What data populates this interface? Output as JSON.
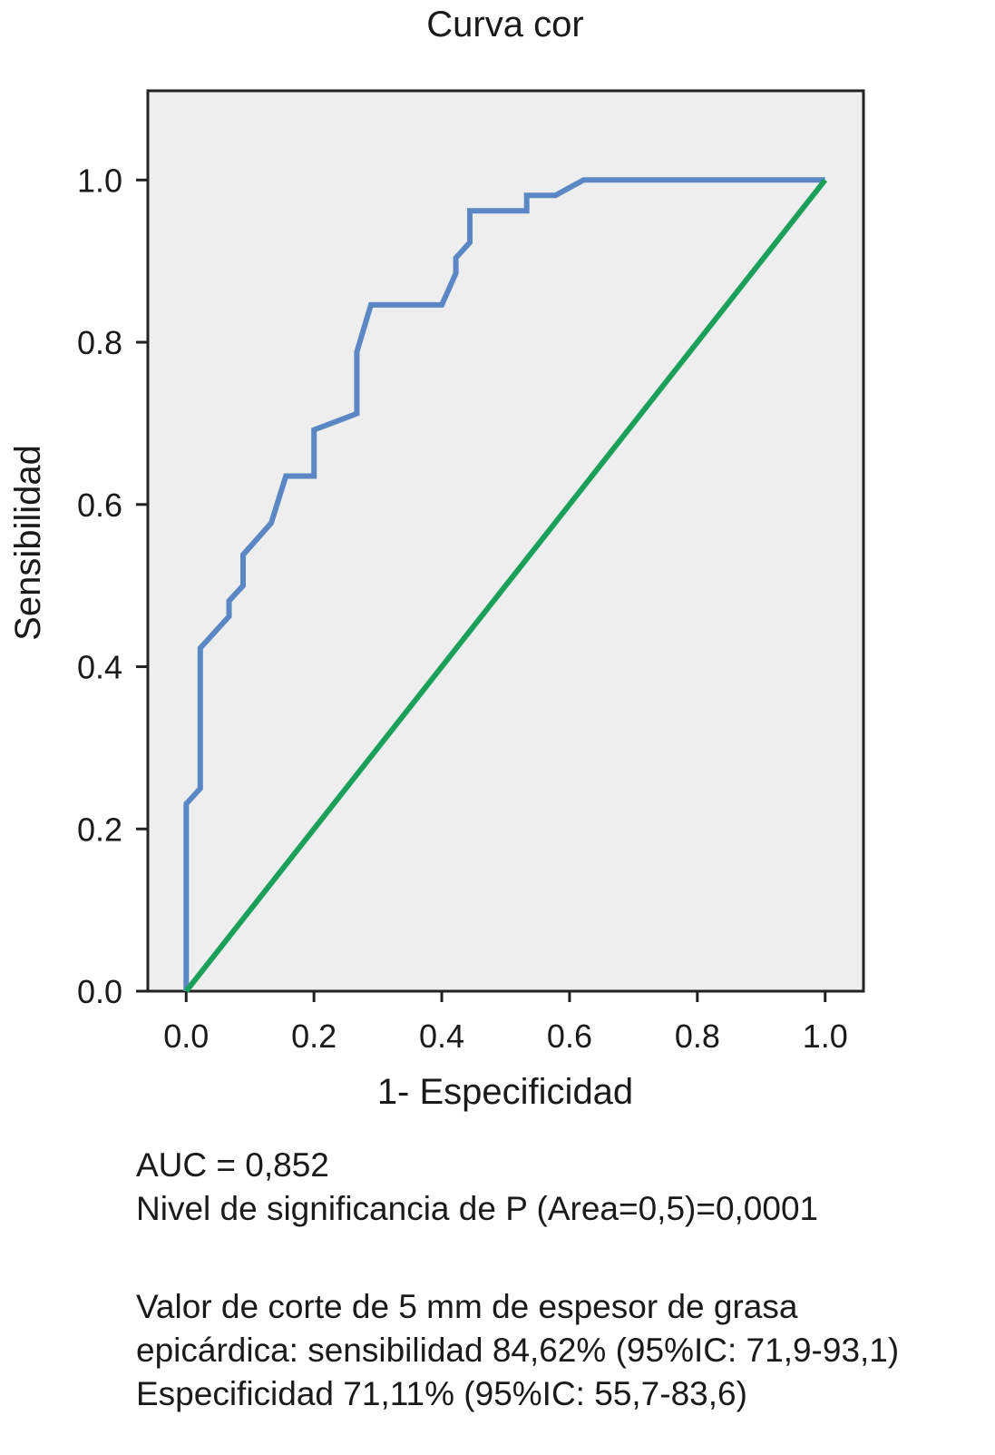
{
  "chart_data": {
    "type": "line",
    "title": "Curva cor",
    "xlabel": "1- Especificidad",
    "ylabel": "Sensibilidad",
    "xlim": [
      -0.06,
      1.06
    ],
    "ylim": [
      0.0,
      1.11
    ],
    "xticks": [
      0.0,
      0.2,
      0.4,
      0.6,
      0.8,
      1.0
    ],
    "yticks": [
      0.0,
      0.2,
      0.4,
      0.6,
      0.8,
      1.0
    ],
    "xtick_labels": [
      "0.0",
      "0.2",
      "0.4",
      "0.6",
      "0.8",
      "1.0"
    ],
    "ytick_labels": [
      "0.0",
      "0.2",
      "0.4",
      "0.6",
      "0.8",
      "1.0"
    ],
    "grid": false,
    "plot_background": "#eeeeee",
    "series": [
      {
        "color": "#5b87c4",
        "x": [
          0.0,
          0.0,
          0.022,
          0.022,
          0.067,
          0.067,
          0.089,
          0.089,
          0.133,
          0.156,
          0.2,
          0.2,
          0.267,
          0.267,
          0.289,
          0.4,
          0.422,
          0.422,
          0.444,
          0.444,
          0.533,
          0.533,
          0.578,
          0.622,
          1.0
        ],
        "y": [
          0.0,
          0.231,
          0.25,
          0.423,
          0.462,
          0.481,
          0.5,
          0.538,
          0.577,
          0.635,
          0.635,
          0.692,
          0.712,
          0.788,
          0.846,
          0.846,
          0.885,
          0.904,
          0.923,
          0.962,
          0.962,
          0.981,
          0.981,
          1.0,
          1.0
        ]
      },
      {
        "color": "#1aa05a",
        "x": [
          0.0,
          1.0
        ],
        "y": [
          0.0,
          1.0
        ]
      }
    ]
  },
  "notes": {
    "auc": "AUC = 0,852",
    "significance": "Nivel de significancia de P (Area=0,5)=0,0001",
    "cutoff_line1": "Valor de corte de 5 mm de  espesor de grasa",
    "cutoff_line2": "epicárdica: sensibilidad 84,62% (95%IC: 71,9-93,1)",
    "cutoff_line3": "Especificidad 71,11% (95%IC: 55,7-83,6)"
  }
}
